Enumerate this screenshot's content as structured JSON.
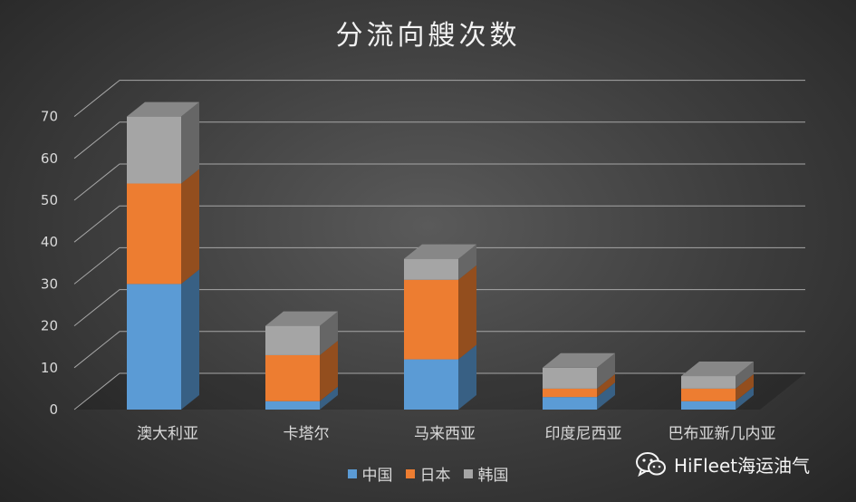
{
  "chart_data": {
    "type": "bar",
    "stacked": true,
    "three_d": true,
    "title": "分流向艘次数",
    "categories": [
      "澳大利亚",
      "卡塔尔",
      "马来西亚",
      "印度尼西亚",
      "巴布亚新几内亚"
    ],
    "series": [
      {
        "name": "中国",
        "values": [
          30,
          2,
          12,
          3,
          2
        ],
        "color": "#5b9bd5"
      },
      {
        "name": "日本",
        "values": [
          24,
          11,
          19,
          2,
          3
        ],
        "color": "#ed7d31"
      },
      {
        "name": "韩国",
        "values": [
          16,
          7,
          5,
          5,
          3
        ],
        "color": "#a5a5a5"
      }
    ],
    "ylim": [
      0,
      70
    ],
    "yticks": [
      0,
      10,
      20,
      30,
      40,
      50,
      60,
      70
    ],
    "grid": true,
    "legend": "bottom"
  },
  "watermark": {
    "text": "HiFleet海运油气",
    "icon": "wechat-icon"
  }
}
